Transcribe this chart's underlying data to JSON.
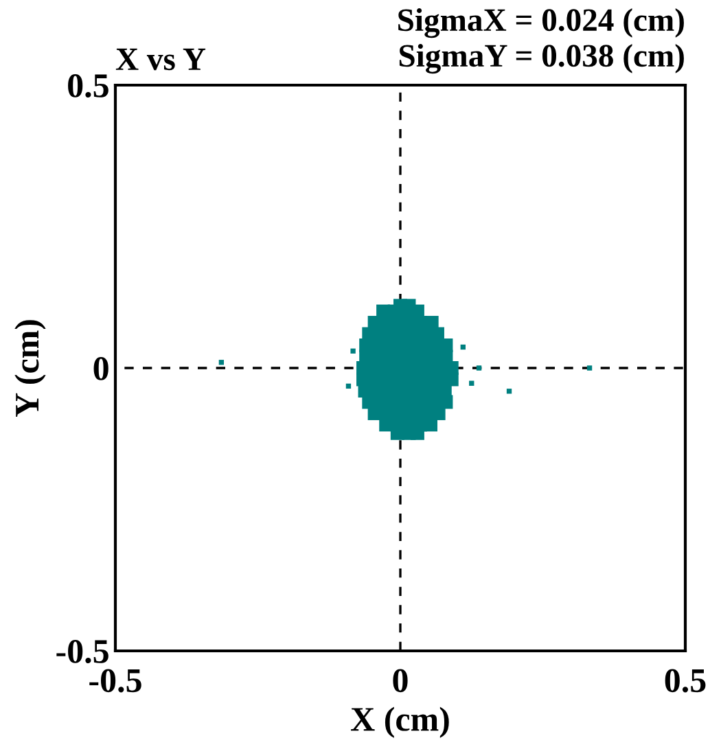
{
  "chart_data": {
    "type": "scatter",
    "title": "X vs Y",
    "xlabel": "X (cm)",
    "ylabel": "Y (cm)",
    "annotations": [
      "SigmaX = 0.024 (cm)",
      "SigmaY = 0.038 (cm)"
    ],
    "xlim": [
      -0.5,
      0.5
    ],
    "ylim": [
      -0.5,
      0.5
    ],
    "xticks": [
      -0.5,
      0,
      0.5
    ],
    "yticks": [
      -0.5,
      0,
      0.5
    ],
    "marker": "square",
    "ref_lines": [
      {
        "axis": "x",
        "value": 0,
        "color": "#000000",
        "line_style": "dashed"
      },
      {
        "axis": "y",
        "value": 0,
        "color": "#000000",
        "line_style": "dashed"
      }
    ],
    "series": [
      {
        "color": "#008080",
        "x": [
          0,
          0.015,
          -0.03,
          -0.01,
          0.01,
          0.03,
          -0.045,
          -0.025,
          -0.005,
          0.015,
          0.035,
          0.055,
          -0.055,
          -0.035,
          -0.015,
          0.005,
          0.025,
          0.045,
          0.065,
          -0.06,
          -0.04,
          -0.02,
          0,
          0.02,
          0.04,
          0.06,
          0.08,
          -0.06,
          -0.04,
          -0.02,
          0,
          0.02,
          0.04,
          0.06,
          0.08,
          -0.065,
          -0.045,
          -0.025,
          -0.005,
          0.015,
          0.035,
          0.055,
          0.075,
          0.09,
          -0.065,
          -0.045,
          -0.025,
          -0.005,
          0.015,
          0.035,
          0.055,
          0.075,
          0.09,
          -0.062,
          -0.042,
          -0.022,
          -0.002,
          0.018,
          0.038,
          0.058,
          0.078,
          -0.055,
          -0.035,
          -0.015,
          0.005,
          0.025,
          0.045,
          0.065,
          0.08,
          -0.045,
          -0.025,
          -0.005,
          0.015,
          0.035,
          0.051,
          0.067,
          -0.025,
          -0.005,
          0.015,
          0.035,
          0.053,
          -0.005,
          0.015,
          0.03
        ],
        "values": [
          0.11,
          0.11,
          0.1,
          0.1,
          0.1,
          0.1,
          0.08,
          0.08,
          0.08,
          0.08,
          0.08,
          0.08,
          0.06,
          0.06,
          0.06,
          0.06,
          0.06,
          0.06,
          0.06,
          0.04,
          0.04,
          0.04,
          0.04,
          0.04,
          0.04,
          0.04,
          0.04,
          0.02,
          0.02,
          0.02,
          0.02,
          0.02,
          0.02,
          0.02,
          0.02,
          0,
          0,
          0,
          0,
          0,
          0,
          0,
          0,
          0,
          -0.02,
          -0.02,
          -0.02,
          -0.02,
          -0.02,
          -0.02,
          -0.02,
          -0.02,
          -0.02,
          -0.04,
          -0.04,
          -0.04,
          -0.04,
          -0.04,
          -0.04,
          -0.04,
          -0.04,
          -0.06,
          -0.06,
          -0.06,
          -0.06,
          -0.06,
          -0.06,
          -0.06,
          -0.06,
          -0.08,
          -0.08,
          -0.08,
          -0.08,
          -0.08,
          -0.08,
          -0.08,
          -0.1,
          -0.1,
          -0.1,
          -0.1,
          -0.1,
          -0.115,
          -0.115,
          -0.115
        ]
      },
      {
        "color": "#008080",
        "x": [
          -0.314,
          -0.083,
          -0.091,
          0.11,
          0.138,
          0.125,
          0.191,
          0.332
        ],
        "values": [
          0.01,
          0.03,
          -0.032,
          0.037,
          0.0,
          -0.027,
          -0.041,
          0.0
        ]
      }
    ]
  }
}
